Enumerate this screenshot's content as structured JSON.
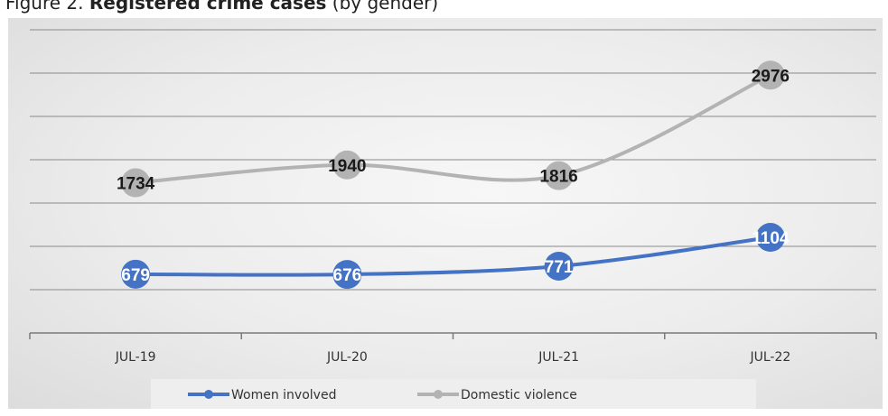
{
  "caption": {
    "prefix": "Figure 2.",
    "bold": "Registered crime cases",
    "suffix": "(by gender)"
  },
  "chart_data": {
    "type": "line",
    "categories": [
      "JUL-19",
      "JUL-20",
      "JUL-21",
      "JUL-22"
    ],
    "series": [
      {
        "name": "Women involved",
        "values": [
          679,
          676,
          771,
          1104
        ],
        "color": "#4472c4",
        "label_color": "#ffffff"
      },
      {
        "name": "Domestic violence",
        "values": [
          1734,
          1940,
          1816,
          2976
        ],
        "color": "#b3b3b3",
        "label_color": "#1a1a1a"
      }
    ],
    "ylim": [
      0,
      3500
    ],
    "y_gridlines": [
      500,
      1000,
      1500,
      2000,
      2500,
      3000,
      3500
    ],
    "grid": true,
    "legend": "bottom",
    "title": "",
    "xlabel": "",
    "ylabel": ""
  }
}
